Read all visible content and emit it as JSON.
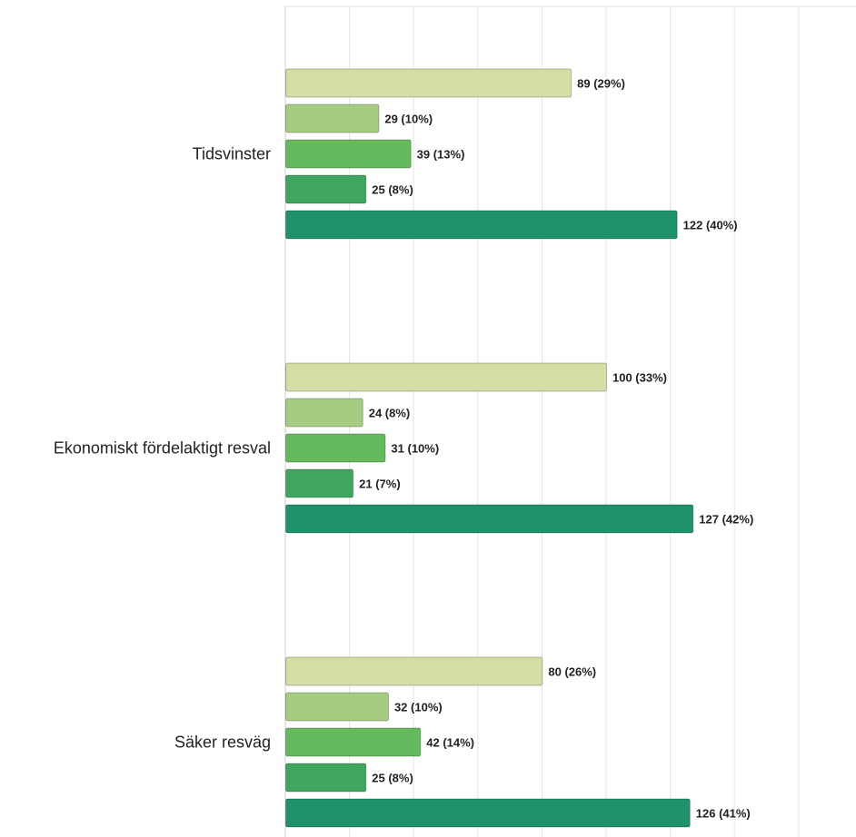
{
  "chart_data": {
    "type": "bar",
    "orientation": "horizontal",
    "grid": true,
    "legend": "none",
    "categories": [
      "Tidsvinster",
      "Ekonomiskt fördelaktigt resval",
      "Säker resväg"
    ],
    "series": [
      {
        "color": "#d4dea6",
        "values": [
          89,
          100,
          80
        ],
        "labels": [
          "89 (29%)",
          "100 (33%)",
          "80 (26%)"
        ]
      },
      {
        "color": "#a6cc82",
        "values": [
          29,
          24,
          32
        ],
        "labels": [
          "29 (10%)",
          "24 (8%)",
          "32 (10%)"
        ]
      },
      {
        "color": "#66ba5e",
        "values": [
          39,
          31,
          42
        ],
        "labels": [
          "39 (13%)",
          "31 (10%)",
          "42 (14%)"
        ]
      },
      {
        "color": "#3ea65e",
        "values": [
          25,
          21,
          25
        ],
        "labels": [
          "25 (8%)",
          "21 (7%)",
          "25 (8%)"
        ]
      },
      {
        "color": "#1d926b",
        "values": [
          122,
          127,
          126
        ],
        "labels": [
          "122 (40%)",
          "127 (42%)",
          "126 (41%)"
        ]
      }
    ],
    "xlim": [
      0,
      180
    ],
    "grid_step": 20
  }
}
